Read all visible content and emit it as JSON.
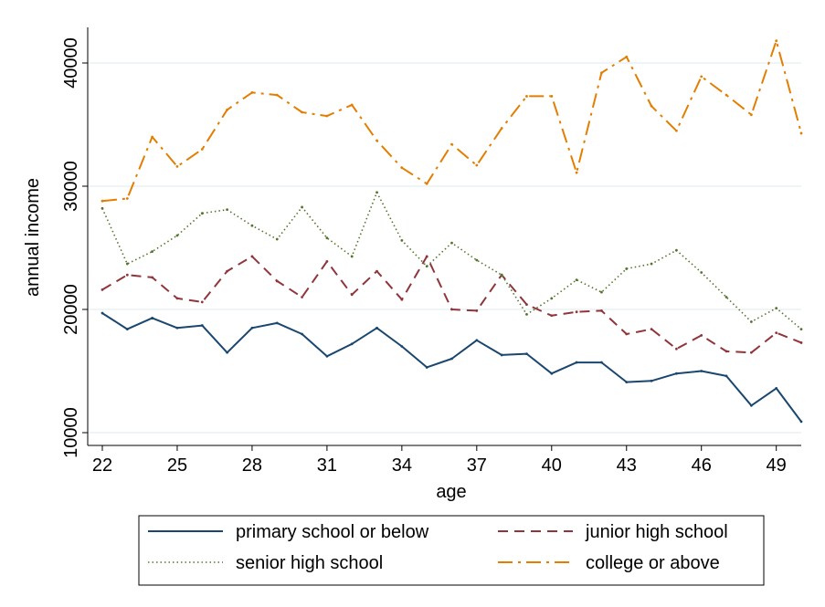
{
  "chart_data": {
    "type": "line",
    "xlabel": "age",
    "ylabel": "annual income",
    "x_ticks": [
      22,
      25,
      28,
      31,
      34,
      37,
      40,
      43,
      46,
      49
    ],
    "y_ticks": [
      10000,
      20000,
      30000,
      40000
    ],
    "xlim": [
      22,
      50
    ],
    "ylim": [
      10000,
      40000
    ],
    "grid": true,
    "legend_position": "bottom",
    "x": [
      22,
      23,
      24,
      25,
      26,
      27,
      28,
      29,
      30,
      31,
      32,
      33,
      34,
      35,
      36,
      37,
      38,
      39,
      40,
      41,
      42,
      43,
      44,
      45,
      46,
      47,
      48,
      49,
      50
    ],
    "series": [
      {
        "name": "primary school or below",
        "color": "#1a476f",
        "style": "solid",
        "values": [
          19700,
          18400,
          19300,
          18500,
          18700,
          16500,
          18500,
          18900,
          18000,
          16200,
          17200,
          18500,
          17000,
          15300,
          16000,
          17500,
          16300,
          16400,
          14800,
          15700,
          15700,
          14100,
          14200,
          14800,
          15000,
          14600,
          12200,
          13600,
          10900
        ]
      },
      {
        "name": "junior high school",
        "color": "#90353b",
        "style": "dash",
        "values": [
          21600,
          22800,
          22600,
          20900,
          20600,
          23100,
          24300,
          22300,
          21000,
          23900,
          21200,
          23100,
          20800,
          24300,
          20000,
          19900,
          22800,
          20400,
          19500,
          19800,
          19900,
          18000,
          18400,
          16800,
          17900,
          16600,
          16500,
          18100,
          17300
        ]
      },
      {
        "name": "senior high school",
        "color": "#55752f",
        "style": "dot",
        "values": [
          28200,
          23700,
          24700,
          26000,
          27800,
          28100,
          26800,
          25700,
          28300,
          25800,
          24300,
          29500,
          25600,
          23500,
          25400,
          24000,
          22800,
          19600,
          20900,
          22400,
          21400,
          23300,
          23700,
          24800,
          23000,
          21000,
          19000,
          20100,
          18400
        ]
      },
      {
        "name": "college or above",
        "color": "#e37e00",
        "style": "dashdot",
        "values": [
          28800,
          29000,
          34000,
          31600,
          33000,
          36200,
          37600,
          37400,
          36000,
          35700,
          36600,
          33700,
          31500,
          30200,
          33400,
          31700,
          34700,
          37300,
          37300,
          31100,
          39200,
          40500,
          36500,
          34500,
          38900,
          37400,
          35800,
          41800,
          34300
        ]
      }
    ]
  }
}
